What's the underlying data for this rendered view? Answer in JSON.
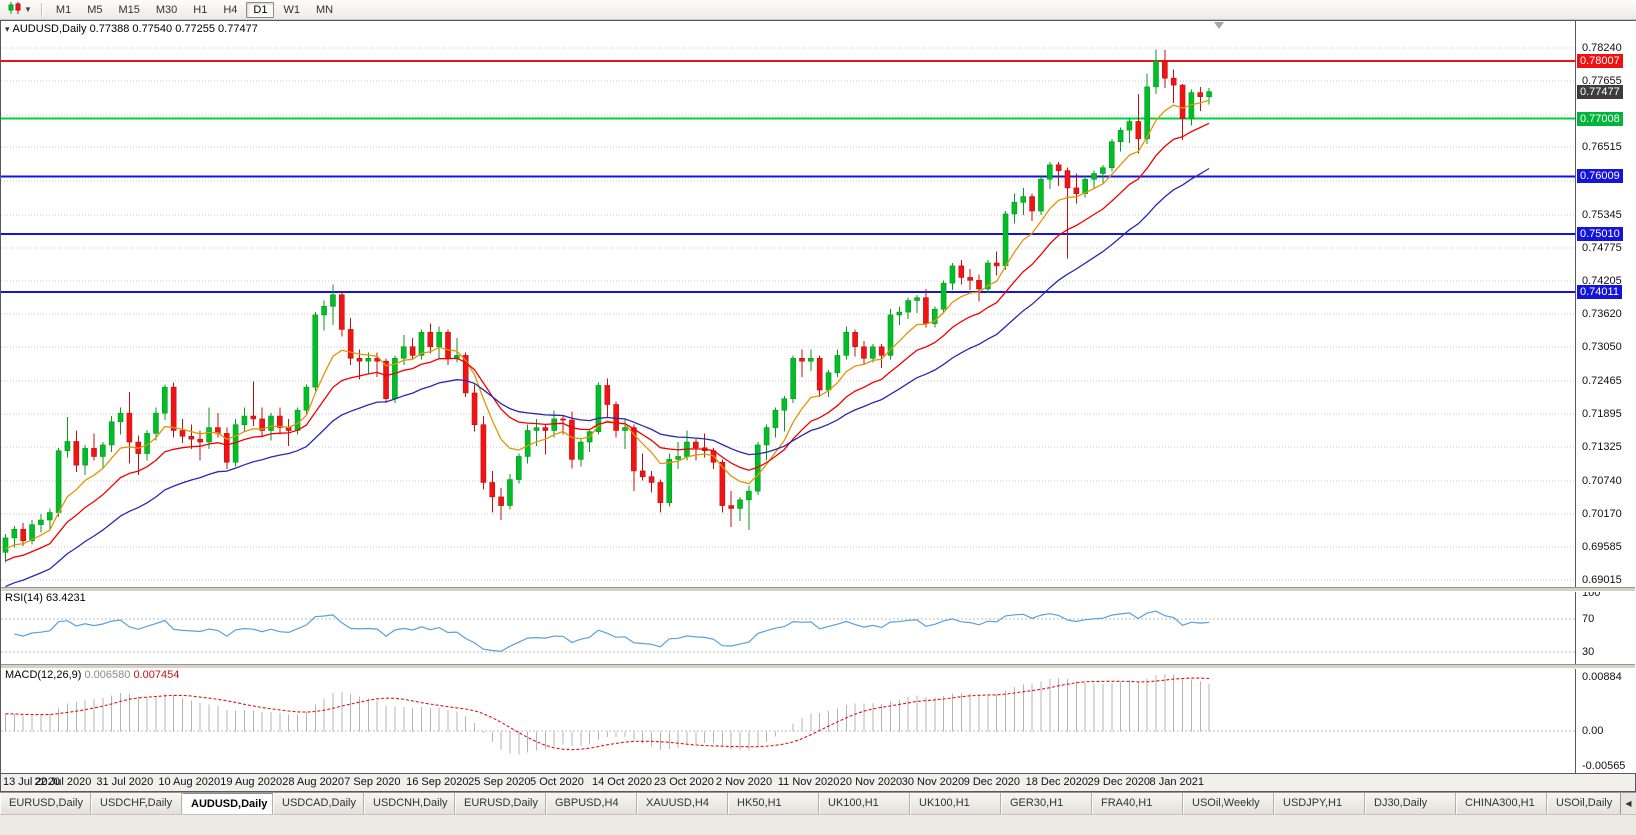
{
  "toolbar": {
    "chart_menu_icon": "candlestick-chart-icon",
    "timeframes": [
      "M1",
      "M5",
      "M15",
      "M30",
      "H1",
      "H4",
      "D1",
      "W1",
      "MN"
    ],
    "active_timeframe": "D1"
  },
  "chart": {
    "symbol_label": "AUDUSD,Daily",
    "open": "0.77388",
    "high": "0.77540",
    "low": "0.77255",
    "close": "0.77477"
  },
  "price_axis": {
    "range": {
      "max": 0.787,
      "min": 0.689
    },
    "grid_values": [
      0.7824,
      0.77655,
      0.7707,
      0.76515,
      0.7593,
      0.75345,
      0.74775,
      0.74205,
      0.7362,
      0.7305,
      0.72465,
      0.71895,
      0.71325,
      0.7074,
      0.7017,
      0.69585,
      0.69015
    ],
    "ticks": [
      {
        "text": "0.78240",
        "value": 0.7824
      },
      {
        "text": "0.77655",
        "value": 0.77655
      },
      {
        "text": "0.76515",
        "value": 0.76515
      },
      {
        "text": "0.75345",
        "value": 0.75345
      },
      {
        "text": "0.74775",
        "value": 0.74775
      },
      {
        "text": "0.74205",
        "value": 0.74205
      },
      {
        "text": "0.73620",
        "value": 0.7362
      },
      {
        "text": "0.73050",
        "value": 0.7305
      },
      {
        "text": "0.72465",
        "value": 0.72465
      },
      {
        "text": "0.71895",
        "value": 0.71895
      },
      {
        "text": "0.71325",
        "value": 0.71325
      },
      {
        "text": "0.70740",
        "value": 0.7074
      },
      {
        "text": "0.70170",
        "value": 0.7017
      },
      {
        "text": "0.69585",
        "value": 0.69585
      },
      {
        "text": "0.69015",
        "value": 0.69015
      }
    ],
    "badges": [
      {
        "text": "0.78007",
        "value": 0.78007,
        "color": "#ee1111",
        "role": "resistance-line-price"
      },
      {
        "text": "0.77477",
        "value": 0.77477,
        "color": "#3c3c3c",
        "role": "current-price"
      },
      {
        "text": "0.77008",
        "value": 0.77008,
        "color": "#00b43c",
        "role": "support-line-price"
      },
      {
        "text": "0.76009",
        "value": 0.76009,
        "color": "#1414dc",
        "role": "support-line-price"
      },
      {
        "text": "0.75010",
        "value": 0.7501,
        "color": "#1414dc",
        "role": "support-line-price"
      },
      {
        "text": "0.74011",
        "value": 0.74011,
        "color": "#1414dc",
        "role": "support-line-price"
      }
    ]
  },
  "chart_data": {
    "type": "candlestick",
    "title": "AUDUSD,Daily",
    "symbol": "AUDUSD",
    "timeframe": "Daily",
    "x_labels": [
      "13 Jul 2020",
      "22 Jul 2020",
      "31 Jul 2020",
      "10 Aug 2020",
      "19 Aug 2020",
      "28 Aug 2020",
      "7 Sep 2020",
      "16 Sep 2020",
      "25 Sep 2020",
      "5 Oct 2020",
      "14 Oct 2020",
      "23 Oct 2020",
      "2 Nov 2020",
      "11 Nov 2020",
      "20 Nov 2020",
      "30 Nov 2020",
      "9 Dec 2020",
      "18 Dec 2020",
      "29 Dec 2020",
      "8 Jan 2021"
    ],
    "x_label_step": 7,
    "up_color": "#00be28",
    "up_line": "#0a9a1e",
    "down_color": "#f21414",
    "down_line": "#c01010",
    "hlines": [
      {
        "price": 0.78007,
        "color": "#ee1111",
        "width": 2
      },
      {
        "price": 0.77008,
        "color": "#00d23c",
        "width": 2
      },
      {
        "price": 0.76009,
        "color": "#1414dc",
        "width": 2
      },
      {
        "price": 0.7501,
        "color": "#1414dc",
        "width": 2
      },
      {
        "price": 0.74011,
        "color": "#1414dc",
        "width": 2
      }
    ],
    "moving_averages": [
      {
        "name": "ma-fast",
        "type": "ema",
        "period": 8,
        "seed": 0.695,
        "color": "#e09600"
      },
      {
        "name": "ma-mid",
        "type": "ema",
        "period": 16,
        "seed": 0.693,
        "color": "#f20000"
      },
      {
        "name": "ma-slow",
        "type": "ema",
        "period": 30,
        "seed": 0.6885,
        "color": "#2828b4"
      }
    ],
    "candles": [
      [
        0.695,
        0.6982,
        0.6932,
        0.6975
      ],
      [
        0.6975,
        0.6996,
        0.6958,
        0.699
      ],
      [
        0.699,
        0.7001,
        0.6961,
        0.697
      ],
      [
        0.697,
        0.7006,
        0.6964,
        0.6998
      ],
      [
        0.6998,
        0.7016,
        0.6984,
        0.7006
      ],
      [
        0.7006,
        0.7026,
        0.699,
        0.7019
      ],
      [
        0.7019,
        0.7131,
        0.7011,
        0.7126
      ],
      [
        0.7126,
        0.7184,
        0.7114,
        0.7142
      ],
      [
        0.7142,
        0.7161,
        0.7089,
        0.7101
      ],
      [
        0.7101,
        0.7136,
        0.7084,
        0.713
      ],
      [
        0.713,
        0.7156,
        0.7109,
        0.7116
      ],
      [
        0.7116,
        0.7141,
        0.7094,
        0.7136
      ],
      [
        0.7136,
        0.7186,
        0.7124,
        0.7176
      ],
      [
        0.7176,
        0.7201,
        0.7154,
        0.7191
      ],
      [
        0.7191,
        0.7228,
        0.7104,
        0.7141
      ],
      [
        0.7141,
        0.7152,
        0.7084,
        0.7121
      ],
      [
        0.7121,
        0.7162,
        0.7109,
        0.7156
      ],
      [
        0.7156,
        0.7201,
        0.7144,
        0.7191
      ],
      [
        0.7191,
        0.7241,
        0.7179,
        0.7236
      ],
      [
        0.7236,
        0.7244,
        0.7149,
        0.7161
      ],
      [
        0.7161,
        0.7181,
        0.7139,
        0.7151
      ],
      [
        0.7151,
        0.7171,
        0.7129,
        0.7146
      ],
      [
        0.7146,
        0.7161,
        0.7109,
        0.7141
      ],
      [
        0.7141,
        0.7201,
        0.7129,
        0.7166
      ],
      [
        0.7166,
        0.7191,
        0.7149,
        0.7156
      ],
      [
        0.7156,
        0.7166,
        0.7094,
        0.7106
      ],
      [
        0.7106,
        0.7181,
        0.7099,
        0.7171
      ],
      [
        0.7171,
        0.7201,
        0.7159,
        0.7186
      ],
      [
        0.7186,
        0.7246,
        0.7169,
        0.7181
      ],
      [
        0.7181,
        0.7201,
        0.7149,
        0.7161
      ],
      [
        0.7161,
        0.7191,
        0.7144,
        0.7186
      ],
      [
        0.7186,
        0.7201,
        0.7154,
        0.7166
      ],
      [
        0.7166,
        0.7181,
        0.7134,
        0.7161
      ],
      [
        0.7161,
        0.7201,
        0.7154,
        0.7196
      ],
      [
        0.7196,
        0.7241,
        0.7189,
        0.7236
      ],
      [
        0.7236,
        0.7366,
        0.7229,
        0.7361
      ],
      [
        0.7361,
        0.7386,
        0.7334,
        0.7376
      ],
      [
        0.7376,
        0.7414,
        0.7344,
        0.7396
      ],
      [
        0.7396,
        0.7401,
        0.7324,
        0.7336
      ],
      [
        0.7336,
        0.7356,
        0.7274,
        0.7286
      ],
      [
        0.7286,
        0.7301,
        0.7249,
        0.7281
      ],
      [
        0.7281,
        0.7296,
        0.7259,
        0.7286
      ],
      [
        0.7286,
        0.7296,
        0.7254,
        0.7281
      ],
      [
        0.7281,
        0.7286,
        0.7209,
        0.7216
      ],
      [
        0.7216,
        0.7291,
        0.7209,
        0.7286
      ],
      [
        0.7286,
        0.7326,
        0.7274,
        0.7306
      ],
      [
        0.7306,
        0.7321,
        0.7284,
        0.7291
      ],
      [
        0.7291,
        0.7336,
        0.7284,
        0.7331
      ],
      [
        0.7331,
        0.7346,
        0.7294,
        0.7306
      ],
      [
        0.7306,
        0.7341,
        0.7284,
        0.7331
      ],
      [
        0.7331,
        0.7336,
        0.7274,
        0.7286
      ],
      [
        0.7286,
        0.7321,
        0.7279,
        0.7291
      ],
      [
        0.7291,
        0.7296,
        0.7219,
        0.7226
      ],
      [
        0.7226,
        0.7241,
        0.7159,
        0.7171
      ],
      [
        0.7171,
        0.7186,
        0.7059,
        0.7071
      ],
      [
        0.7071,
        0.7091,
        0.7019,
        0.7046
      ],
      [
        0.7046,
        0.7061,
        0.7006,
        0.7031
      ],
      [
        0.7031,
        0.7086,
        0.7024,
        0.7076
      ],
      [
        0.7076,
        0.7121,
        0.7069,
        0.7116
      ],
      [
        0.7116,
        0.7171,
        0.7104,
        0.7161
      ],
      [
        0.7161,
        0.7181,
        0.7134,
        0.7166
      ],
      [
        0.7166,
        0.7171,
        0.7119,
        0.7161
      ],
      [
        0.7161,
        0.7196,
        0.7149,
        0.7181
      ],
      [
        0.7181,
        0.7186,
        0.7154,
        0.7179
      ],
      [
        0.7179,
        0.7194,
        0.7095,
        0.7111
      ],
      [
        0.7111,
        0.7146,
        0.7099,
        0.7141
      ],
      [
        0.7141,
        0.7161,
        0.7124,
        0.7159
      ],
      [
        0.7159,
        0.7244,
        0.7154,
        0.7239
      ],
      [
        0.7239,
        0.7251,
        0.7184,
        0.7206
      ],
      [
        0.7206,
        0.7211,
        0.7149,
        0.7161
      ],
      [
        0.7161,
        0.7181,
        0.7129,
        0.7166
      ],
      [
        0.7166,
        0.7171,
        0.7056,
        0.7091
      ],
      [
        0.7091,
        0.7121,
        0.7074,
        0.7081
      ],
      [
        0.7081,
        0.7091,
        0.7054,
        0.7071
      ],
      [
        0.7071,
        0.7076,
        0.7019,
        0.7036
      ],
      [
        0.7036,
        0.7121,
        0.7029,
        0.7111
      ],
      [
        0.7111,
        0.7141,
        0.7094,
        0.7116
      ],
      [
        0.7116,
        0.7161,
        0.7109,
        0.7141
      ],
      [
        0.7141,
        0.7146,
        0.7109,
        0.7131
      ],
      [
        0.7131,
        0.7156,
        0.7114,
        0.7126
      ],
      [
        0.7126,
        0.7131,
        0.7094,
        0.7106
      ],
      [
        0.7106,
        0.7111,
        0.7019,
        0.7031
      ],
      [
        0.7031,
        0.7056,
        0.6994,
        0.7026
      ],
      [
        0.7026,
        0.7046,
        0.7004,
        0.7041
      ],
      [
        0.7041,
        0.7066,
        0.6989,
        0.7056
      ],
      [
        0.7056,
        0.7141,
        0.7049,
        0.7136
      ],
      [
        0.7136,
        0.7171,
        0.7109,
        0.7166
      ],
      [
        0.7166,
        0.7201,
        0.7149,
        0.7196
      ],
      [
        0.7196,
        0.7221,
        0.7159,
        0.7216
      ],
      [
        0.7216,
        0.7291,
        0.7209,
        0.7286
      ],
      [
        0.7286,
        0.7301,
        0.7254,
        0.7281
      ],
      [
        0.7281,
        0.7301,
        0.7264,
        0.7286
      ],
      [
        0.7286,
        0.7291,
        0.7219,
        0.7231
      ],
      [
        0.7231,
        0.7266,
        0.7219,
        0.7261
      ],
      [
        0.7261,
        0.7301,
        0.7254,
        0.7291
      ],
      [
        0.7291,
        0.7341,
        0.7284,
        0.7331
      ],
      [
        0.7331,
        0.7336,
        0.7289,
        0.7306
      ],
      [
        0.7306,
        0.7316,
        0.7274,
        0.7286
      ],
      [
        0.7286,
        0.7311,
        0.7279,
        0.7306
      ],
      [
        0.7306,
        0.7311,
        0.7269,
        0.7291
      ],
      [
        0.7291,
        0.7371,
        0.7284,
        0.7361
      ],
      [
        0.7361,
        0.7376,
        0.7344,
        0.7366
      ],
      [
        0.7366,
        0.7391,
        0.7354,
        0.7386
      ],
      [
        0.7386,
        0.7396,
        0.7364,
        0.7391
      ],
      [
        0.7391,
        0.7406,
        0.7339,
        0.7346
      ],
      [
        0.7346,
        0.7376,
        0.7339,
        0.7371
      ],
      [
        0.7371,
        0.7421,
        0.7364,
        0.7416
      ],
      [
        0.7416,
        0.7451,
        0.7404,
        0.7446
      ],
      [
        0.7446,
        0.7456,
        0.7414,
        0.7426
      ],
      [
        0.7426,
        0.7441,
        0.7404,
        0.7421
      ],
      [
        0.7421,
        0.7431,
        0.7384,
        0.7406
      ],
      [
        0.7406,
        0.7456,
        0.7399,
        0.7451
      ],
      [
        0.7451,
        0.7471,
        0.7429,
        0.7446
      ],
      [
        0.7446,
        0.7541,
        0.7439,
        0.7536
      ],
      [
        0.7536,
        0.7571,
        0.7519,
        0.7556
      ],
      [
        0.7556,
        0.7581,
        0.7534,
        0.7566
      ],
      [
        0.7566,
        0.7571,
        0.7524,
        0.7541
      ],
      [
        0.7541,
        0.7601,
        0.7534,
        0.7596
      ],
      [
        0.7596,
        0.7626,
        0.7579,
        0.7621
      ],
      [
        0.7621,
        0.7626,
        0.7584,
        0.7611
      ],
      [
        0.7611,
        0.7616,
        0.7459,
        0.7581
      ],
      [
        0.7581,
        0.7606,
        0.7554,
        0.7571
      ],
      [
        0.7571,
        0.7601,
        0.7564,
        0.7596
      ],
      [
        0.7596,
        0.7611,
        0.7579,
        0.7606
      ],
      [
        0.7606,
        0.7621,
        0.7589,
        0.7616
      ],
      [
        0.7616,
        0.7666,
        0.7609,
        0.7661
      ],
      [
        0.7661,
        0.7686,
        0.7644,
        0.7681
      ],
      [
        0.7681,
        0.7701,
        0.7659,
        0.7696
      ],
      [
        0.7696,
        0.7744,
        0.7641,
        0.7666
      ],
      [
        0.7666,
        0.7779,
        0.7657,
        0.7756
      ],
      [
        0.7756,
        0.7821,
        0.7744,
        0.7801
      ],
      [
        0.7801,
        0.782,
        0.7754,
        0.7771
      ],
      [
        0.7771,
        0.7786,
        0.7728,
        0.7759
      ],
      [
        0.7759,
        0.7761,
        0.7664,
        0.7701
      ],
      [
        0.7701,
        0.7751,
        0.7689,
        0.7746
      ],
      [
        0.7746,
        0.7756,
        0.7714,
        0.7739
      ],
      [
        0.77388,
        0.7754,
        0.77255,
        0.77477
      ]
    ]
  },
  "rsi": {
    "label": "RSI(14) 63.4231",
    "period": 14,
    "value": "63.4231",
    "line_color": "#5aa0dc",
    "levels": [
      70,
      30
    ],
    "axis_labels": [
      {
        "text": "100",
        "value": 100
      },
      {
        "text": "70",
        "value": 70
      },
      {
        "text": "30",
        "value": 30
      }
    ],
    "range": {
      "max": 104,
      "min": 16
    }
  },
  "macd": {
    "name": "MACD(12,26,9)",
    "value_main": "0.006580",
    "value_signal": "0.007454",
    "histogram_color": "#b4b4b4",
    "signal_color": "#e01414",
    "axis_labels": [
      {
        "text": "0.00884",
        "value": 0.00884
      },
      {
        "text": "0.00",
        "value": 0
      },
      {
        "text": "-0.00565",
        "value": -0.00565
      }
    ],
    "range": {
      "max": 0.0105,
      "min": -0.0068
    }
  },
  "tabs": {
    "active_index": 2,
    "items": [
      {
        "label": "EURUSD,Daily"
      },
      {
        "label": "USDCHF,Daily"
      },
      {
        "label": "AUDUSD,Daily"
      },
      {
        "label": "USDCAD,Daily"
      },
      {
        "label": "USDCNH,Daily"
      },
      {
        "label": "EURUSD,Daily"
      },
      {
        "label": "GBPUSD,H4"
      },
      {
        "label": "XAUUSD,H4"
      },
      {
        "label": "HK50,H1"
      },
      {
        "label": "UK100,H1"
      },
      {
        "label": "UK100,H1"
      },
      {
        "label": "GER30,H1"
      },
      {
        "label": "FRA40,H1"
      },
      {
        "label": "USOil,Weekly"
      },
      {
        "label": "USDJPY,H1"
      },
      {
        "label": "DJ30,Daily"
      },
      {
        "label": "CHINA300,H1"
      },
      {
        "label": "USOil,Daily"
      }
    ],
    "scroll_icon": "tab-scroll-left"
  }
}
